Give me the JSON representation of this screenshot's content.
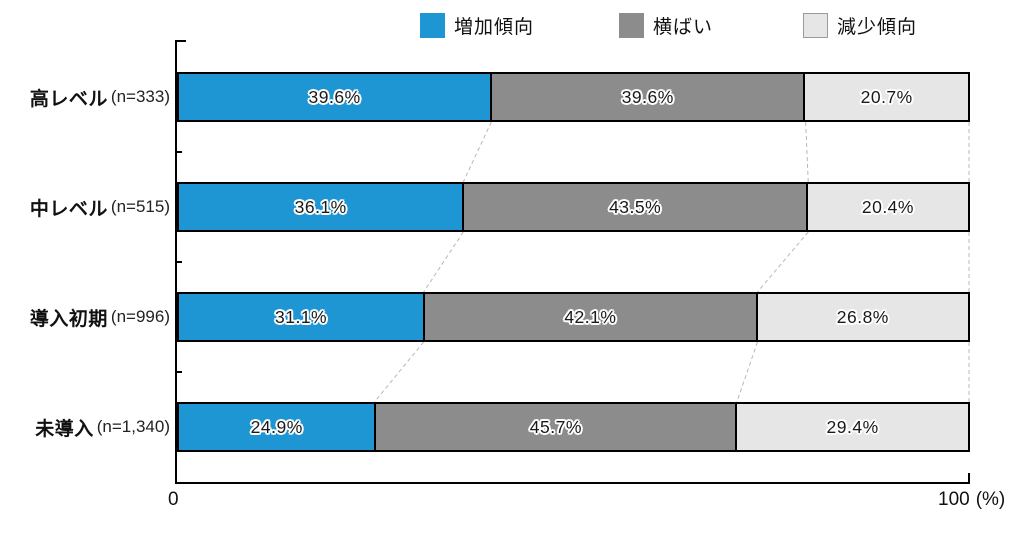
{
  "chart_data": {
    "type": "bar",
    "orientation": "horizontal",
    "stacked": true,
    "title": "",
    "categories": [
      {
        "label": "高レベル",
        "n_label": "(n=333)"
      },
      {
        "label": "中レベル",
        "n_label": "(n=515)"
      },
      {
        "label": "導入初期",
        "n_label": "(n=996)"
      },
      {
        "label": "未導入",
        "n_label": "(n=1,340)"
      }
    ],
    "series": [
      {
        "name": "増加傾向",
        "color": "#1e96d4",
        "values": [
          39.6,
          36.1,
          31.1,
          24.9
        ]
      },
      {
        "name": "横ばい",
        "color": "#8c8c8c",
        "values": [
          39.6,
          43.5,
          42.1,
          45.7
        ]
      },
      {
        "name": "減少傾向",
        "color": "#e6e6e6",
        "values": [
          20.7,
          20.4,
          26.8,
          29.4
        ]
      }
    ],
    "value_suffix": "%",
    "xlim": [
      0,
      100
    ],
    "x_axis": {
      "min_label": "0",
      "max_label": "100",
      "unit_label": "(%)"
    },
    "legend_position": "top",
    "grid": false,
    "colors": {
      "bar_border": "#000000",
      "connector_line": "#b8b8b8",
      "label_text": "#1a1a1a",
      "label_halo": "#ffffff"
    }
  }
}
